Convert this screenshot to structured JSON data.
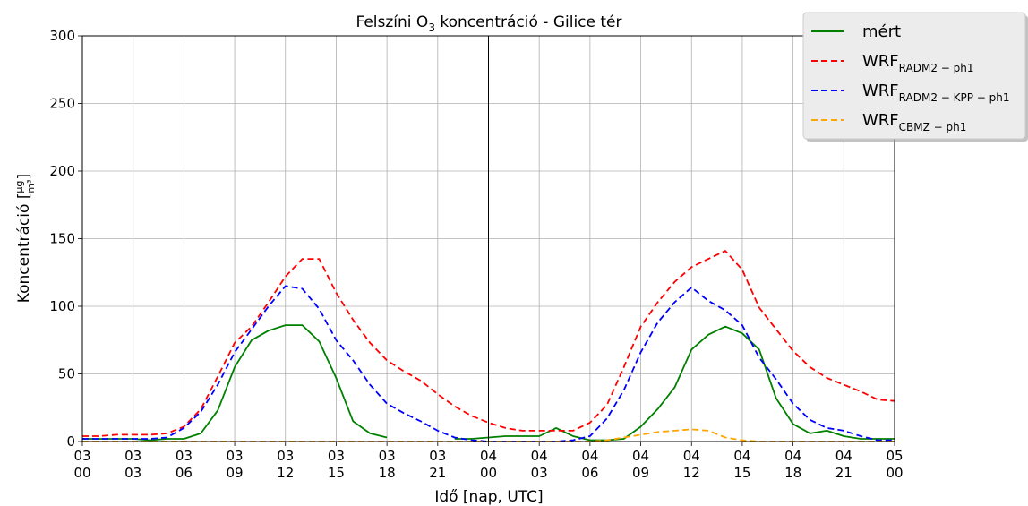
{
  "chart_data": {
    "type": "line",
    "title": "Felszíni O",
    "title_sub": "3",
    "title_rest": " koncentráció - Gilice tér",
    "xlabel": "Idő [nap, UTC]",
    "ylabel": "Koncentráció [",
    "ylabel_unit_num": "μg",
    "ylabel_unit_den": "m³",
    "ylabel_end": "]",
    "xlim": [
      0,
      48
    ],
    "ylim": [
      0,
      300
    ],
    "yticks": [
      0,
      50,
      100,
      150,
      200,
      250,
      300
    ],
    "xticks": [
      {
        "x": 0,
        "day": "03",
        "hour": "00"
      },
      {
        "x": 3,
        "day": "03",
        "hour": "03"
      },
      {
        "x": 6,
        "day": "03",
        "hour": "06"
      },
      {
        "x": 9,
        "day": "03",
        "hour": "09"
      },
      {
        "x": 12,
        "day": "03",
        "hour": "12"
      },
      {
        "x": 15,
        "day": "03",
        "hour": "15"
      },
      {
        "x": 18,
        "day": "03",
        "hour": "18"
      },
      {
        "x": 21,
        "day": "03",
        "hour": "21"
      },
      {
        "x": 24,
        "day": "04",
        "hour": "00"
      },
      {
        "x": 27,
        "day": "04",
        "hour": "03"
      },
      {
        "x": 30,
        "day": "04",
        "hour": "06"
      },
      {
        "x": 33,
        "day": "04",
        "hour": "09"
      },
      {
        "x": 36,
        "day": "04",
        "hour": "12"
      },
      {
        "x": 39,
        "day": "04",
        "hour": "15"
      },
      {
        "x": 42,
        "day": "04",
        "hour": "18"
      },
      {
        "x": 45,
        "day": "04",
        "hour": "21"
      },
      {
        "x": 48,
        "day": "05",
        "hour": "00"
      }
    ],
    "vline_x": 24,
    "grid": true,
    "legend_position": "top-right",
    "series": [
      {
        "name": "mért",
        "name_sub": "",
        "color": "#008000",
        "style": "solid",
        "values": [
          2,
          2,
          2,
          2,
          1,
          2,
          2,
          6,
          23,
          55,
          75,
          82,
          86,
          86,
          74,
          47,
          15,
          6,
          3,
          null,
          null,
          null,
          2,
          2,
          3,
          4,
          4,
          4,
          10,
          4,
          1,
          1,
          2,
          11,
          24,
          40,
          68,
          79,
          85,
          80,
          68,
          32,
          13,
          6,
          8,
          4,
          2,
          2,
          2
        ]
      },
      {
        "name": "WRF",
        "name_sub": "RADM2 − ph1",
        "color": "#ff0000",
        "style": "dashed",
        "values": [
          4,
          4,
          5,
          5,
          5,
          6,
          11,
          24,
          48,
          73,
          85,
          103,
          122,
          135,
          135,
          110,
          90,
          73,
          60,
          52,
          45,
          35,
          26,
          19,
          14,
          10,
          8,
          8,
          8,
          8,
          14,
          27,
          55,
          85,
          103,
          118,
          129,
          135,
          141,
          127,
          99,
          83,
          67,
          55,
          47,
          42,
          37,
          31,
          30
        ]
      },
      {
        "name": "WRF",
        "name_sub": "RADM2 − KPP − ph1",
        "color": "#0000ff",
        "style": "dashed",
        "values": [
          2,
          2,
          2,
          2,
          2,
          3,
          10,
          22,
          42,
          66,
          83,
          100,
          115,
          113,
          98,
          75,
          60,
          42,
          28,
          21,
          15,
          8,
          3,
          1,
          0,
          0,
          0,
          0,
          0,
          1,
          4,
          17,
          38,
          66,
          88,
          103,
          114,
          104,
          97,
          86,
          62,
          46,
          28,
          16,
          10,
          8,
          4,
          1,
          1
        ]
      },
      {
        "name": "WRF",
        "name_sub": "CBMZ − ph1",
        "color": "#ffa500",
        "style": "dashed",
        "values": [
          0,
          0,
          0,
          0,
          0,
          0,
          0,
          0,
          0,
          0,
          0,
          0,
          0,
          0,
          0,
          0,
          0,
          0,
          0,
          0,
          0,
          0,
          0,
          0,
          0,
          0,
          0,
          0,
          0,
          0,
          0,
          1,
          3,
          5,
          7,
          8,
          9,
          8,
          3,
          1,
          0,
          0,
          0,
          0,
          0,
          0,
          0,
          0,
          0
        ]
      }
    ]
  }
}
